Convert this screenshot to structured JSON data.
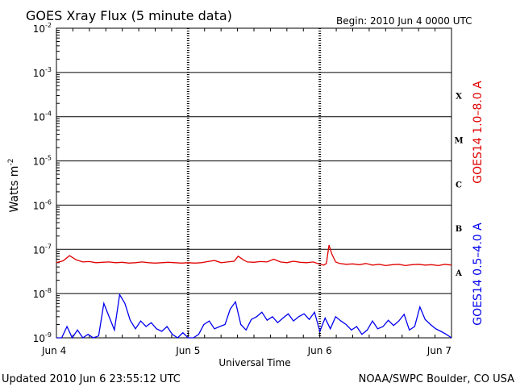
{
  "header": {
    "title": "GOES Xray Flux (5 minute data)",
    "begin": "Begin:  2010 Jun 4 0000 UTC"
  },
  "footer": {
    "updated": "Updated 2010 Jun  6 23:55:12 UTC",
    "source": "NOAA/SWPC Boulder, CO USA"
  },
  "colors": {
    "long": "#e00000",
    "short": "#0000ee",
    "axis": "#000000"
  },
  "chart_data": {
    "type": "line",
    "xlabel": "Universal Time",
    "ylabel_base": "Watts m",
    "ylabel_exp": "-2",
    "y_scale": "log",
    "ylim": [
      1e-09,
      0.01
    ],
    "xlim": [
      0,
      3
    ],
    "x_ticks": [
      {
        "value": 0,
        "label": "Jun 4"
      },
      {
        "value": 1,
        "label": "Jun 5"
      },
      {
        "value": 2,
        "label": "Jun 6"
      },
      {
        "value": 3,
        "label": "Jun 7"
      }
    ],
    "y_ticks": [
      {
        "value": 0.01,
        "base": "10",
        "exp": "-2"
      },
      {
        "value": 0.001,
        "base": "10",
        "exp": "-3"
      },
      {
        "value": 0.0001,
        "base": "10",
        "exp": "-4"
      },
      {
        "value": 1e-05,
        "base": "10",
        "exp": "-5"
      },
      {
        "value": 1e-06,
        "base": "10",
        "exp": "-6"
      },
      {
        "value": 1e-07,
        "base": "10",
        "exp": "-7"
      },
      {
        "value": 1e-08,
        "base": "10",
        "exp": "-8"
      },
      {
        "value": 1e-09,
        "base": "10",
        "exp": "-9"
      }
    ],
    "flare_classes": [
      {
        "label": "X",
        "level": 0.0003
      },
      {
        "label": "M",
        "level": 3e-05
      },
      {
        "label": "C",
        "level": 3e-06
      },
      {
        "label": "B",
        "level": 3e-07
      },
      {
        "label": "A",
        "level": 3e-08
      }
    ],
    "series": [
      {
        "name": "GOES14 1.0–8.0 A",
        "color": "#e00000",
        "x": [
          0.0,
          0.05,
          0.1,
          0.15,
          0.2,
          0.25,
          0.3,
          0.35,
          0.4,
          0.45,
          0.5,
          0.55,
          0.6,
          0.65,
          0.7,
          0.75,
          0.8,
          0.85,
          0.9,
          0.95,
          1.0,
          1.05,
          1.1,
          1.15,
          1.2,
          1.25,
          1.3,
          1.35,
          1.38,
          1.42,
          1.45,
          1.5,
          1.55,
          1.6,
          1.65,
          1.7,
          1.75,
          1.8,
          1.85,
          1.9,
          1.95,
          2.0,
          2.03,
          2.05,
          2.07,
          2.09,
          2.12,
          2.15,
          2.2,
          2.25,
          2.3,
          2.35,
          2.4,
          2.45,
          2.5,
          2.55,
          2.6,
          2.65,
          2.7,
          2.75,
          2.8,
          2.85,
          2.9,
          2.95,
          3.0
        ],
        "y": [
          5e-08,
          5.5e-08,
          7.2e-08,
          5.8e-08,
          5.2e-08,
          5.3e-08,
          5e-08,
          5.1e-08,
          5.2e-08,
          5e-08,
          5.1e-08,
          4.9e-08,
          5e-08,
          5.2e-08,
          5e-08,
          4.9e-08,
          5e-08,
          5.1e-08,
          5e-08,
          4.9e-08,
          5e-08,
          4.9e-08,
          5e-08,
          5.3e-08,
          5.6e-08,
          5e-08,
          5.2e-08,
          5.4e-08,
          7e-08,
          5.8e-08,
          5.2e-08,
          5.1e-08,
          5.3e-08,
          5.2e-08,
          6e-08,
          5.2e-08,
          5e-08,
          5.4e-08,
          5.1e-08,
          5e-08,
          5.2e-08,
          4.6e-08,
          4.4e-08,
          4.8e-08,
          1.25e-07,
          8e-08,
          5.2e-08,
          4.8e-08,
          4.6e-08,
          4.7e-08,
          4.5e-08,
          4.8e-08,
          4.4e-08,
          4.6e-08,
          4.3e-08,
          4.5e-08,
          4.6e-08,
          4.3e-08,
          4.5e-08,
          4.6e-08,
          4.4e-08,
          4.5e-08,
          4.3e-08,
          4.6e-08,
          4.4e-08
        ]
      },
      {
        "name": "GOES14 0.5–4.0 A",
        "color": "#0000ee",
        "x": [
          0.0,
          0.04,
          0.08,
          0.12,
          0.16,
          0.2,
          0.24,
          0.28,
          0.32,
          0.36,
          0.4,
          0.44,
          0.48,
          0.52,
          0.56,
          0.6,
          0.64,
          0.68,
          0.72,
          0.76,
          0.8,
          0.84,
          0.88,
          0.92,
          0.96,
          1.0,
          1.04,
          1.08,
          1.12,
          1.16,
          1.2,
          1.24,
          1.28,
          1.32,
          1.36,
          1.4,
          1.44,
          1.48,
          1.52,
          1.56,
          1.6,
          1.64,
          1.68,
          1.72,
          1.76,
          1.8,
          1.84,
          1.88,
          1.92,
          1.96,
          2.0,
          2.04,
          2.08,
          2.12,
          2.16,
          2.2,
          2.24,
          2.28,
          2.32,
          2.36,
          2.4,
          2.44,
          2.48,
          2.52,
          2.56,
          2.6,
          2.64,
          2.68,
          2.72,
          2.76,
          2.8,
          2.84,
          2.88,
          2.92,
          2.96,
          3.0
        ],
        "y": [
          1e-09,
          1e-09,
          1.8e-09,
          1e-09,
          1.5e-09,
          1e-09,
          1.2e-09,
          1e-09,
          1.1e-09,
          6e-09,
          3e-09,
          1.5e-09,
          9.5e-09,
          6e-09,
          2.5e-09,
          1.6e-09,
          2.4e-09,
          1.8e-09,
          2.2e-09,
          1.6e-09,
          1.4e-09,
          1.8e-09,
          1.2e-09,
          1e-09,
          1.3e-09,
          1e-09,
          1e-09,
          1.2e-09,
          2e-09,
          2.4e-09,
          1.6e-09,
          1.8e-09,
          2e-09,
          4.5e-09,
          6.5e-09,
          2e-09,
          1.5e-09,
          2.6e-09,
          3e-09,
          3.8e-09,
          2.5e-09,
          3e-09,
          2.2e-09,
          2.8e-09,
          3.5e-09,
          2.4e-09,
          3e-09,
          3.5e-09,
          2.6e-09,
          3.8e-09,
          1.4e-09,
          2.8e-09,
          1.6e-09,
          3e-09,
          2.4e-09,
          2e-09,
          1.5e-09,
          1.8e-09,
          1.2e-09,
          1.5e-09,
          2.4e-09,
          1.6e-09,
          1.8e-09,
          2.5e-09,
          1.9e-09,
          2.4e-09,
          3.4e-09,
          1.5e-09,
          1.8e-09,
          5e-09,
          2.6e-09,
          2e-09,
          1.6e-09,
          1.4e-09,
          1.2e-09,
          1e-09
        ]
      }
    ]
  }
}
